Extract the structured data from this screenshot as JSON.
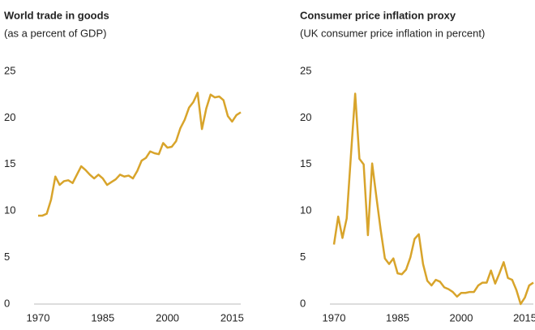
{
  "chart_data": [
    {
      "type": "line",
      "title": "World trade in goods",
      "subtitle": "(as a percent of GDP)",
      "color": "#d8a42b",
      "x": [
        1970,
        1971,
        1972,
        1973,
        1974,
        1975,
        1976,
        1977,
        1978,
        1979,
        1980,
        1981,
        1982,
        1983,
        1984,
        1985,
        1986,
        1987,
        1988,
        1989,
        1990,
        1991,
        1992,
        1993,
        1994,
        1995,
        1996,
        1997,
        1998,
        1999,
        2000,
        2001,
        2002,
        2003,
        2004,
        2005,
        2006,
        2007,
        2008,
        2009,
        2010,
        2011,
        2012,
        2013,
        2014,
        2015,
        2016,
        2017
      ],
      "values": [
        9.5,
        9.5,
        9.7,
        11.2,
        13.7,
        12.8,
        13.2,
        13.3,
        13.0,
        13.9,
        14.8,
        14.4,
        13.9,
        13.5,
        13.9,
        13.5,
        12.8,
        13.1,
        13.4,
        13.9,
        13.7,
        13.8,
        13.5,
        14.3,
        15.4,
        15.7,
        16.4,
        16.2,
        16.1,
        17.3,
        16.8,
        16.9,
        17.5,
        18.9,
        19.8,
        21.1,
        21.7,
        22.7,
        18.8,
        21.0,
        22.5,
        22.2,
        22.3,
        21.9,
        20.2,
        19.6,
        20.3,
        20.6
      ],
      "xlim": [
        1970,
        2017
      ],
      "xticks": [
        1970,
        1985,
        2000,
        2015
      ],
      "ylim": [
        0,
        25
      ],
      "yticks": [
        0,
        5,
        10,
        15,
        20,
        25
      ]
    },
    {
      "type": "line",
      "title": "Consumer price inflation proxy",
      "subtitle": "(UK consumer price inflation in percent)",
      "color": "#d8a42b",
      "x": [
        1970,
        1971,
        1972,
        1973,
        1974,
        1975,
        1976,
        1977,
        1978,
        1979,
        1980,
        1981,
        1982,
        1983,
        1984,
        1985,
        1986,
        1987,
        1988,
        1989,
        1990,
        1991,
        1992,
        1993,
        1994,
        1995,
        1996,
        1997,
        1998,
        1999,
        2000,
        2001,
        2002,
        2003,
        2004,
        2005,
        2006,
        2007,
        2008,
        2009,
        2010,
        2011,
        2012,
        2013,
        2014,
        2015,
        2016,
        2017
      ],
      "values": [
        6.4,
        9.4,
        7.1,
        9.2,
        16.0,
        22.6,
        15.6,
        15.0,
        7.4,
        15.1,
        11.5,
        8.0,
        4.9,
        4.3,
        4.9,
        3.3,
        3.2,
        3.7,
        5.0,
        7.0,
        7.5,
        4.3,
        2.5,
        2.0,
        2.6,
        2.4,
        1.8,
        1.6,
        1.3,
        0.8,
        1.2,
        1.2,
        1.3,
        1.3,
        2.0,
        2.3,
        2.3,
        3.6,
        2.2,
        3.3,
        4.5,
        2.8,
        2.6,
        1.5,
        0.0,
        0.7,
        2.0,
        2.3
      ],
      "xlim": [
        1970,
        2017
      ],
      "xticks": [
        1970,
        1985,
        2000,
        2015
      ],
      "ylim": [
        0,
        25
      ],
      "yticks": [
        0,
        5,
        10,
        15,
        20,
        25
      ]
    }
  ]
}
